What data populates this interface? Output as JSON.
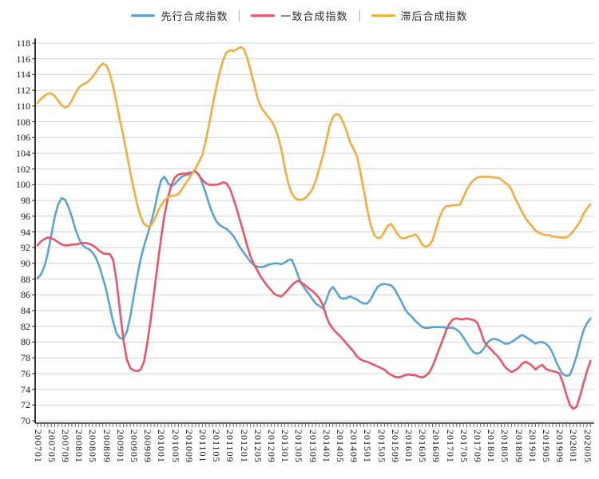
{
  "legend": {
    "separator": "|",
    "items": [
      {
        "label": "先行合成指数",
        "color": "#5ba4d4"
      },
      {
        "label": "一致合成指数",
        "color": "#e8566a"
      },
      {
        "label": "滞后合成指数",
        "color": "#efae3f"
      }
    ]
  },
  "chart_data": {
    "type": "line",
    "title": "",
    "xlabel": "",
    "ylabel": "",
    "ylim": [
      70,
      118
    ],
    "grid": true,
    "legend_position": "top",
    "x_start": "200701",
    "x_end": "202006",
    "x_frequency": "monthly",
    "y_tick_labels": [
      118,
      116,
      114,
      112,
      110,
      108,
      106,
      104,
      102,
      100,
      98,
      96,
      94,
      92,
      90,
      88,
      86,
      84,
      82,
      80,
      78,
      76,
      74,
      72,
      70
    ],
    "x_tick_labels": [
      "200701",
      "200705",
      "200709",
      "200801",
      "200805",
      "200809",
      "200901",
      "200905",
      "200909",
      "201001",
      "201005",
      "201009",
      "201101",
      "201105",
      "201109",
      "201201",
      "201205",
      "201209",
      "201301",
      "201305",
      "201309",
      "201401",
      "201405",
      "201409",
      "201501",
      "201505",
      "201509",
      "201601",
      "201605",
      "201609",
      "201701",
      "201705",
      "201709",
      "201801",
      "201805",
      "201809",
      "201901",
      "201905",
      "201909",
      "202001",
      "202005"
    ],
    "series": [
      {
        "name": "先行合成指数",
        "color": "#5ba4d4",
        "values": [
          88.1,
          88.6,
          89.6,
          91.3,
          93.6,
          95.9,
          97.5,
          98.3,
          98.1,
          97.2,
          95.9,
          94.4,
          93.2,
          92.4,
          92.0,
          91.8,
          91.4,
          90.7,
          89.6,
          88.2,
          86.6,
          84.6,
          82.6,
          81.1,
          80.5,
          80.4,
          81.3,
          83.2,
          85.8,
          88.3,
          90.5,
          92.2,
          93.6,
          95.1,
          96.8,
          98.9,
          100.6,
          101.0,
          100.2,
          99.8,
          100.1,
          100.6,
          101.0,
          101.2,
          101.3,
          101.5,
          101.7,
          101.3,
          100.2,
          98.9,
          97.5,
          96.3,
          95.4,
          94.9,
          94.6,
          94.4,
          94.0,
          93.5,
          92.8,
          92.0,
          91.4,
          90.8,
          90.2,
          89.8,
          89.6,
          89.5,
          89.6,
          89.8,
          89.9,
          90.0,
          90.0,
          89.9,
          90.1,
          90.4,
          90.5,
          89.5,
          88.3,
          87.3,
          86.7,
          86.1,
          85.5,
          84.9,
          84.6,
          84.3,
          85.2,
          86.5,
          87.0,
          86.4,
          85.7,
          85.5,
          85.6,
          85.8,
          85.6,
          85.4,
          85.1,
          84.9,
          84.9,
          85.4,
          86.3,
          87.0,
          87.3,
          87.4,
          87.3,
          87.2,
          86.7,
          85.9,
          85.1,
          84.2,
          83.6,
          83.2,
          82.7,
          82.3,
          81.9,
          81.8,
          81.8,
          81.9,
          81.9,
          81.9,
          81.9,
          81.8,
          81.8,
          81.8,
          81.6,
          81.2,
          80.6,
          79.9,
          79.2,
          78.7,
          78.5,
          78.7,
          79.2,
          79.9,
          80.3,
          80.4,
          80.3,
          80.1,
          79.8,
          79.8,
          80.0,
          80.3,
          80.6,
          80.9,
          80.7,
          80.4,
          80.1,
          79.8,
          80.0,
          80.0,
          79.8,
          79.4,
          78.6,
          77.5,
          76.6,
          75.9,
          75.7,
          75.8,
          76.9,
          78.3,
          80.0,
          81.5,
          82.4,
          83.0
        ]
      },
      {
        "name": "一致合成指数",
        "color": "#e8566a",
        "values": [
          92.3,
          92.8,
          93.1,
          93.3,
          93.2,
          93.0,
          92.7,
          92.4,
          92.3,
          92.3,
          92.4,
          92.4,
          92.5,
          92.6,
          92.6,
          92.5,
          92.3,
          92.0,
          91.6,
          91.3,
          91.2,
          91.2,
          90.5,
          87.8,
          84.0,
          80.3,
          77.8,
          76.7,
          76.4,
          76.3,
          76.5,
          77.5,
          80.0,
          83.0,
          86.5,
          90.0,
          93.3,
          96.2,
          98.4,
          100.0,
          100.9,
          101.3,
          101.4,
          101.4,
          101.5,
          101.6,
          101.7,
          101.2,
          100.6,
          100.2,
          100.0,
          100.0,
          100.0,
          100.1,
          100.3,
          100.2,
          99.5,
          98.3,
          96.9,
          95.4,
          93.9,
          92.3,
          90.9,
          89.9,
          89.1,
          88.3,
          87.7,
          87.1,
          86.6,
          86.1,
          85.9,
          85.8,
          86.2,
          86.7,
          87.2,
          87.6,
          87.8,
          87.5,
          87.2,
          86.8,
          86.5,
          86.1,
          85.6,
          84.8,
          83.4,
          82.3,
          81.7,
          81.2,
          80.8,
          80.3,
          79.8,
          79.3,
          78.8,
          78.2,
          77.8,
          77.6,
          77.5,
          77.3,
          77.1,
          76.9,
          76.7,
          76.5,
          76.1,
          75.8,
          75.6,
          75.5,
          75.6,
          75.8,
          75.9,
          75.8,
          75.8,
          75.6,
          75.5,
          75.7,
          76.1,
          76.9,
          78.0,
          79.2,
          80.3,
          81.5,
          82.4,
          82.9,
          83.0,
          82.9,
          82.9,
          83.0,
          82.9,
          82.8,
          82.5,
          81.4,
          80.1,
          79.5,
          79.1,
          78.6,
          78.2,
          77.6,
          76.9,
          76.5,
          76.2,
          76.4,
          76.7,
          77.2,
          77.5,
          77.3,
          77.0,
          76.5,
          76.9,
          77.1,
          76.6,
          76.4,
          76.3,
          76.2,
          76.0,
          74.8,
          73.3,
          72.0,
          71.5,
          71.8,
          73.2,
          74.8,
          76.3,
          77.6
        ]
      },
      {
        "name": "滞后合成指数",
        "color": "#efae3f",
        "values": [
          110.4,
          110.9,
          111.3,
          111.6,
          111.6,
          111.3,
          110.7,
          110.1,
          109.8,
          110.0,
          110.7,
          111.6,
          112.3,
          112.7,
          112.9,
          113.2,
          113.7,
          114.3,
          115.0,
          115.4,
          115.2,
          114.2,
          112.5,
          110.4,
          108.2,
          106.2,
          103.9,
          101.6,
          99.5,
          97.5,
          96.0,
          95.0,
          94.7,
          94.8,
          95.5,
          96.6,
          97.4,
          98.0,
          98.4,
          98.6,
          98.6,
          98.8,
          99.4,
          100.1,
          100.7,
          101.4,
          102.1,
          102.9,
          103.8,
          105.6,
          107.8,
          110.1,
          112.3,
          114.2,
          115.8,
          116.8,
          117.1,
          117.0,
          117.2,
          117.5,
          117.3,
          116.2,
          114.6,
          112.9,
          111.1,
          109.9,
          109.3,
          108.7,
          108.2,
          107.4,
          106.2,
          104.5,
          102.2,
          100.2,
          98.9,
          98.3,
          98.1,
          98.1,
          98.3,
          98.8,
          99.4,
          100.5,
          102.0,
          103.6,
          105.4,
          107.4,
          108.6,
          109.0,
          108.8,
          107.9,
          106.8,
          105.4,
          104.6,
          103.6,
          101.6,
          99.3,
          96.9,
          94.9,
          93.6,
          93.2,
          93.3,
          94.0,
          94.8,
          95.0,
          94.3,
          93.6,
          93.2,
          93.2,
          93.4,
          93.5,
          93.7,
          93.2,
          92.4,
          92.1,
          92.3,
          92.9,
          94.3,
          95.8,
          96.8,
          97.3,
          97.3,
          97.4,
          97.4,
          97.5,
          98.4,
          99.4,
          100.1,
          100.6,
          100.9,
          101.0,
          101.0,
          101.0,
          101.0,
          100.9,
          100.9,
          100.7,
          100.3,
          100.0,
          99.4,
          98.3,
          97.5,
          96.6,
          95.8,
          95.2,
          94.7,
          94.2,
          93.9,
          93.7,
          93.6,
          93.6,
          93.4,
          93.4,
          93.3,
          93.3,
          93.3,
          93.6,
          94.1,
          94.7,
          95.3,
          96.3,
          97.0,
          97.5
        ]
      }
    ]
  }
}
